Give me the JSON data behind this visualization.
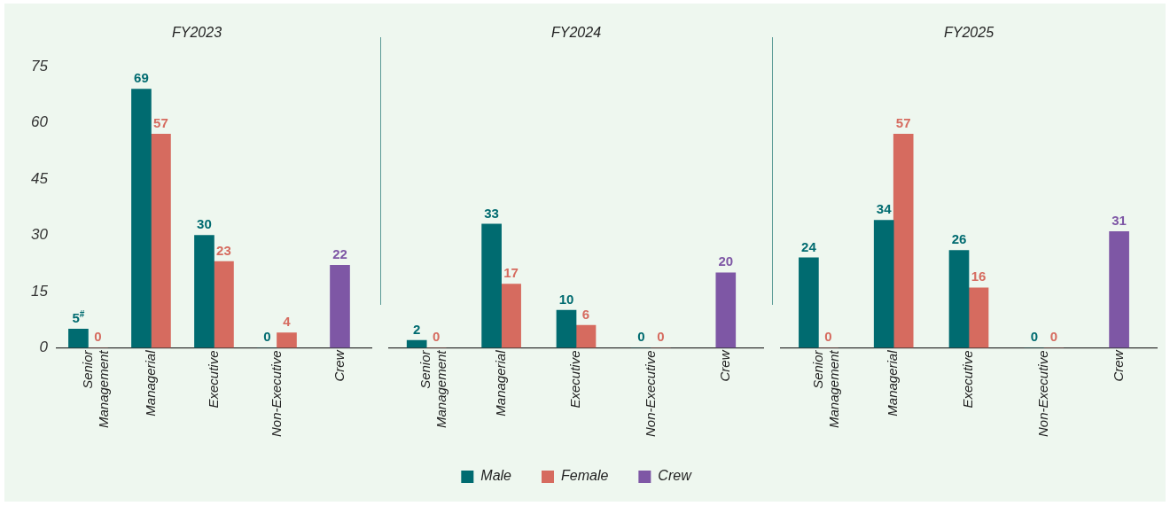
{
  "chart_data": [
    {
      "type": "bar",
      "title": "FY2023",
      "categories": [
        "Senior Management",
        "Managerial",
        "Executive",
        "Non-Executive",
        "Crew"
      ],
      "series": [
        {
          "color": "#006b70",
          "values": [
            5,
            69,
            30,
            0,
            null
          ],
          "value_labels": [
            "5$^{#}$",
            "69",
            "30",
            "0",
            null
          ]
        },
        {
          "color": "#d66b5f",
          "values": [
            0,
            57,
            23,
            4,
            null
          ],
          "value_labels": [
            "0",
            "57",
            "23",
            "4",
            null
          ]
        },
        {
          "color": "#7e57a5",
          "values": [
            null,
            null,
            null,
            null,
            22
          ],
          "value_labels": [
            null,
            null,
            null,
            null,
            "22"
          ]
        }
      ],
      "ylim": [
        0,
        75
      ],
      "yticks": [
        0,
        15,
        30,
        45,
        60,
        75
      ],
      "grid": false,
      "legend": false
    },
    {
      "type": "bar",
      "title": "FY2024",
      "categories": [
        "Senior Management",
        "Managerial",
        "Executive",
        "Non-Executive",
        "Crew"
      ],
      "series": [
        {
          "name": "Male",
          "color": "#006b70",
          "values": [
            2,
            33,
            10,
            0,
            null
          ],
          "value_labels": [
            "2",
            "33",
            "10",
            "0",
            null
          ]
        },
        {
          "name": "Female",
          "color": "#d66b5f",
          "values": [
            0,
            17,
            6,
            0,
            null
          ],
          "value_labels": [
            "0",
            "17",
            "6",
            "0",
            null
          ]
        },
        {
          "name": "Crew",
          "color": "#7e57a5",
          "values": [
            null,
            null,
            null,
            null,
            20
          ],
          "value_labels": [
            null,
            null,
            null,
            null,
            "20"
          ]
        }
      ],
      "ylim": [
        0,
        75
      ],
      "yticks": [
        0,
        15,
        30,
        45,
        60,
        75
      ],
      "grid": false,
      "legend": "bottom",
      "tick_labels": "x"
    },
    {
      "type": "bar",
      "title": "FY2025",
      "categories": [
        "Senior Management",
        "Managerial",
        "Executive",
        "Non-Executive",
        "Crew"
      ],
      "series": [
        {
          "color": "#006b70",
          "values": [
            24,
            34,
            26,
            0,
            null
          ],
          "value_labels": [
            "24",
            "34",
            "26",
            "0",
            null
          ]
        },
        {
          "color": "#d66b5f",
          "values": [
            0,
            57,
            16,
            0,
            null
          ],
          "value_labels": [
            "0",
            "57",
            "16",
            "0",
            null
          ]
        },
        {
          "color": "#7e57a5",
          "values": [
            null,
            null,
            null,
            null,
            31
          ],
          "value_labels": [
            null,
            null,
            null,
            null,
            "31"
          ]
        }
      ],
      "ylim": [
        0,
        75
      ],
      "yticks": [
        0,
        15,
        30,
        45,
        60,
        75
      ],
      "grid": false,
      "legend": false,
      "tick_labels": "x"
    }
  ]
}
